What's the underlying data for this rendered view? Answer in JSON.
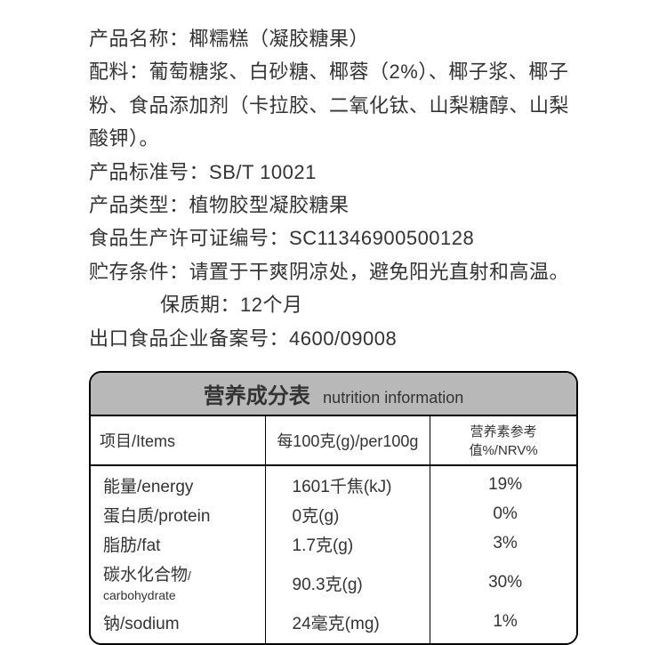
{
  "info": {
    "product_name_label": "产品名称：",
    "product_name_value": "椰糯糕（凝胶糖果）",
    "ingredients_label": "配料：",
    "ingredients_value": "葡萄糖浆、白砂糖、椰蓉（2%）、椰子浆、椰子粉、食品添加剂（卡拉胶、二氧化钛、山梨糖醇、山梨酸钾）。",
    "standard_label": "产品标准号：",
    "standard_value": "SB/T 10021",
    "type_label": "产品类型：",
    "type_value": "植物胶型凝胶糖果",
    "license_label": "食品生产许可证编号：",
    "license_value": "SC11346900500128",
    "storage_label": "贮存条件：",
    "storage_value": "请置于干爽阴凉处，避免阳光直射和高温。",
    "shelf_life_label": "保质期：",
    "shelf_life_value": "12个月",
    "export_label": "出口食品企业备案号：",
    "export_value": "4600/09008"
  },
  "nutrition": {
    "title_cn": "营养成分表",
    "title_en": "nutrition information",
    "header": {
      "col1": "项目/Items",
      "col2": "每100克(g)/per100g",
      "col3": "营养素参考值%/NRV%"
    },
    "rows": [
      {
        "name_cn": "能量",
        "name_en": "/energy",
        "value": "1601千焦(kJ)",
        "nrv": "19%"
      },
      {
        "name_cn": "蛋白质",
        "name_en": "/protein",
        "value": "0克(g)",
        "nrv": "0%"
      },
      {
        "name_cn": "脂肪",
        "name_en": "/fat",
        "value": "1.7克(g)",
        "nrv": "3%"
      },
      {
        "name_cn": "碳水化合物",
        "name_en": "/ carbohydrate",
        "value": "90.3克(g)",
        "nrv": "30%"
      },
      {
        "name_cn": "钠",
        "name_en": "/sodium",
        "value": "24毫克(mg)",
        "nrv": "1%"
      }
    ]
  }
}
